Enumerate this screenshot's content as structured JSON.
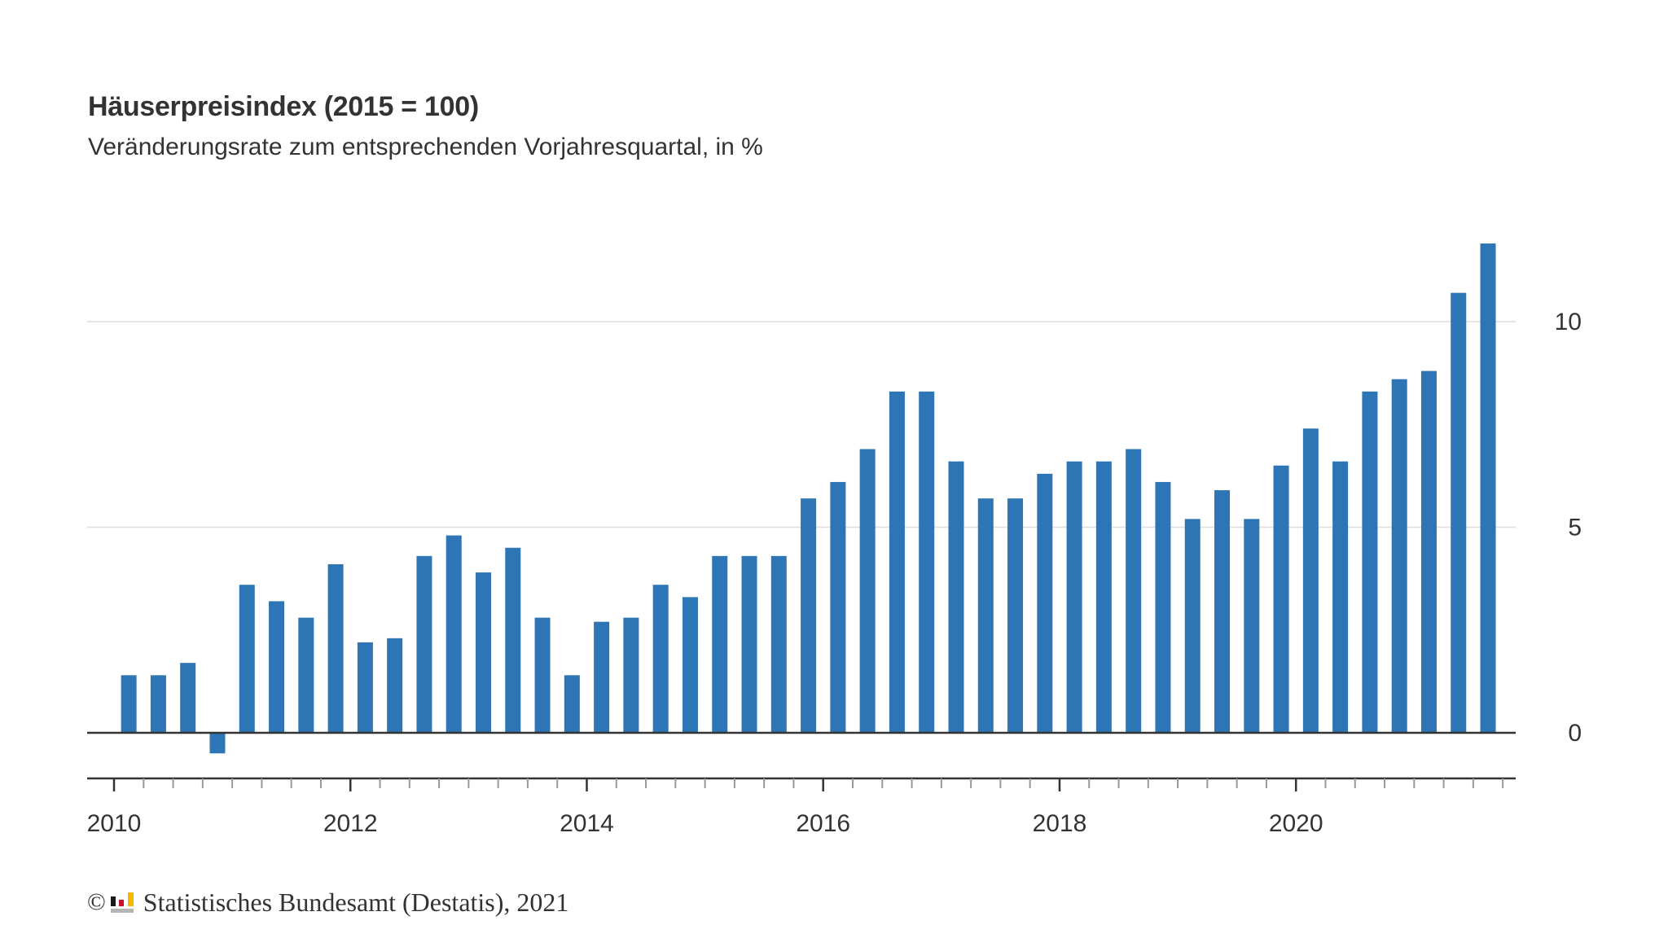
{
  "colors": {
    "bar": "#2E75B6",
    "grid": "#DDDDDD",
    "axis": "#333333",
    "minor_tick": "#999999",
    "text": "#333333"
  },
  "footer": {
    "copyright_symbol": "©",
    "logo_icon": "destatis-logo-icon",
    "text": "Statistisches Bundesamt (Destatis), 2021"
  },
  "chart_data": {
    "type": "bar",
    "title": "Häuserpreisindex (2015 = 100)",
    "subtitle": "Veränderungsrate zum entsprechenden Vorjahresquartal, in %",
    "xlabel": "",
    "ylabel": "",
    "ylim": [
      -1.1,
      12
    ],
    "yaxis_position": "right",
    "yticks": [
      0,
      5,
      10
    ],
    "ytick_labels": [
      "0",
      "5",
      "10"
    ],
    "xlim": [
      2010,
      2021.75
    ],
    "xticks": [
      2010,
      2012,
      2014,
      2016,
      2018,
      2020
    ],
    "xtick_labels": [
      "2010",
      "2012",
      "2014",
      "2016",
      "2018",
      "2020"
    ],
    "minor_xtick_step": 0.25,
    "grid": true,
    "legend": "none",
    "categories": [
      "2010 Q1",
      "2010 Q2",
      "2010 Q3",
      "2010 Q4",
      "2011 Q1",
      "2011 Q2",
      "2011 Q3",
      "2011 Q4",
      "2012 Q1",
      "2012 Q2",
      "2012 Q3",
      "2012 Q4",
      "2013 Q1",
      "2013 Q2",
      "2013 Q3",
      "2013 Q4",
      "2014 Q1",
      "2014 Q2",
      "2014 Q3",
      "2014 Q4",
      "2015 Q1",
      "2015 Q2",
      "2015 Q3",
      "2015 Q4",
      "2016 Q1",
      "2016 Q2",
      "2016 Q3",
      "2016 Q4",
      "2017 Q1",
      "2017 Q2",
      "2017 Q3",
      "2017 Q4",
      "2018 Q1",
      "2018 Q2",
      "2018 Q3",
      "2018 Q4",
      "2019 Q1",
      "2019 Q2",
      "2019 Q3",
      "2019 Q4",
      "2020 Q1",
      "2020 Q2",
      "2020 Q3",
      "2020 Q4",
      "2021 Q1",
      "2021 Q2",
      "2021 Q3"
    ],
    "values": [
      1.4,
      1.4,
      1.7,
      -0.5,
      3.6,
      3.2,
      2.8,
      4.1,
      2.2,
      2.3,
      4.3,
      4.8,
      3.9,
      4.5,
      2.8,
      1.4,
      2.7,
      2.8,
      3.6,
      3.3,
      4.3,
      4.3,
      4.3,
      5.7,
      6.1,
      6.9,
      8.3,
      8.3,
      6.6,
      5.7,
      5.7,
      6.3,
      6.6,
      6.6,
      6.9,
      6.1,
      5.2,
      5.9,
      5.2,
      6.5,
      7.4,
      6.6,
      8.3,
      8.6,
      8.8,
      10.7,
      11.9
    ]
  }
}
